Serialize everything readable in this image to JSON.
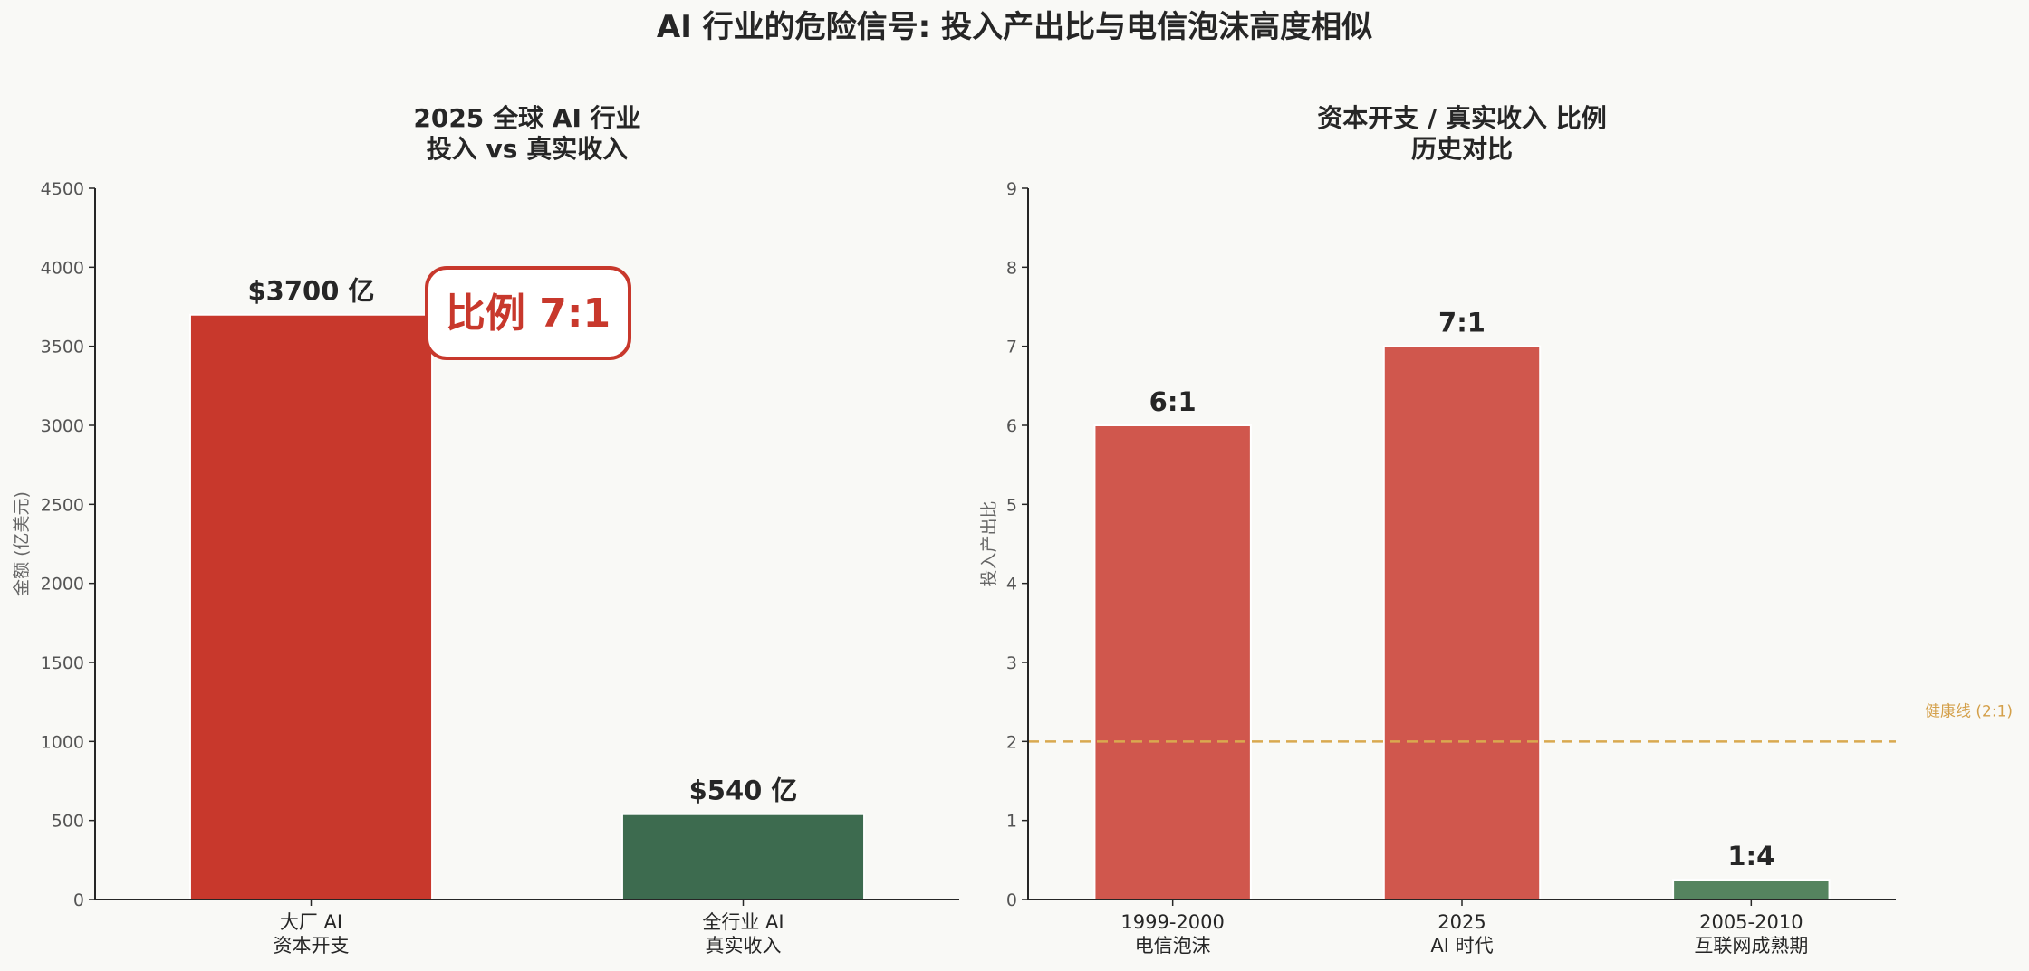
{
  "suptitle": "AI 行业的危险信号: 投入产出比与电信泡沫高度相似",
  "colors": {
    "background": "#f9f9f6",
    "capex_red": "#c8382c",
    "revenue_green": "#3d6b4f",
    "history_red": "#d0574d",
    "history_green": "#55845f",
    "healthy_line": "#d9a94f"
  },
  "chart_data": [
    {
      "type": "bar",
      "title": "2025 全球 AI 行业\n投入 vs 真实收入",
      "ylabel": "金额 (亿美元)",
      "ylim": [
        0,
        4500
      ],
      "yticks": [
        0,
        500,
        1000,
        1500,
        2000,
        2500,
        3000,
        3500,
        4000,
        4500
      ],
      "categories": [
        "大厂 AI\n资本开支",
        "全行业 AI\n真实收入"
      ],
      "values": [
        3700,
        540
      ],
      "data_labels": [
        "$3700 亿",
        "$540 亿"
      ],
      "bar_colors": [
        "#c8382c",
        "#3d6b4f"
      ],
      "annotation": "比例 7:1"
    },
    {
      "type": "bar",
      "title": "资本开支 / 真实收入 比例\n历史对比",
      "ylabel": "投入产出比",
      "ylim": [
        0,
        9
      ],
      "yticks": [
        0,
        1,
        2,
        3,
        4,
        5,
        6,
        7,
        8,
        9
      ],
      "categories": [
        "1999-2000\n电信泡沫",
        "2025\nAI 时代",
        "2005-2010\n互联网成熟期"
      ],
      "values": [
        6,
        7,
        0.25
      ],
      "data_labels": [
        "6:1",
        "7:1",
        "1:4"
      ],
      "bar_colors": [
        "#d0574d",
        "#d0574d",
        "#55845f"
      ],
      "reference_line": {
        "value": 2,
        "label": "健康线 (2:1)"
      }
    }
  ]
}
